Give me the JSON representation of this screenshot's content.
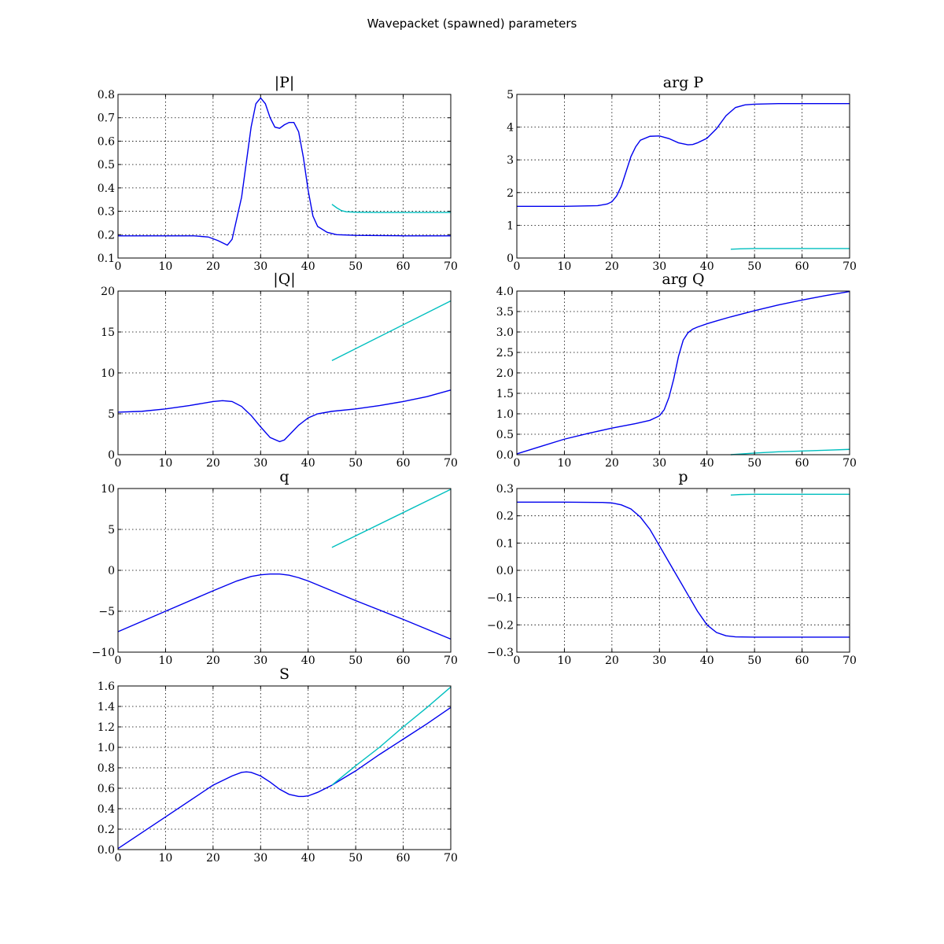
{
  "figure": {
    "title": "Wavepacket (spawned) parameters"
  },
  "colors": {
    "parent": "#0000ee",
    "spawned": "#00bfbf"
  },
  "chart_data": [
    {
      "type": "line",
      "title": "|P|",
      "xlim": [
        0,
        70
      ],
      "ylim": [
        0.1,
        0.8
      ],
      "xticks": [
        0,
        10,
        20,
        30,
        40,
        50,
        60,
        70
      ],
      "yticks": [
        0.1,
        0.2,
        0.3,
        0.4,
        0.5,
        0.6,
        0.7,
        0.8
      ],
      "ytick_labels": [
        "0.1",
        "0.2",
        "0.3",
        "0.4",
        "0.5",
        "0.6",
        "0.7",
        "0.8"
      ],
      "grid": true,
      "series": [
        {
          "color": "#0000ee",
          "x": [
            0,
            10,
            16,
            19,
            21,
            23,
            24,
            26,
            28,
            29,
            30,
            31,
            32,
            33,
            34,
            35,
            36,
            37,
            38,
            39,
            40,
            41,
            42,
            44,
            46,
            50,
            60,
            70
          ],
          "y": [
            0.195,
            0.195,
            0.195,
            0.19,
            0.175,
            0.155,
            0.18,
            0.36,
            0.66,
            0.76,
            0.785,
            0.76,
            0.7,
            0.66,
            0.655,
            0.67,
            0.68,
            0.68,
            0.64,
            0.53,
            0.39,
            0.28,
            0.235,
            0.21,
            0.2,
            0.197,
            0.195,
            0.195
          ]
        },
        {
          "color": "#00bfbf",
          "x": [
            45,
            46,
            47,
            48,
            50,
            55,
            60,
            70
          ],
          "y": [
            0.33,
            0.315,
            0.303,
            0.298,
            0.296,
            0.295,
            0.295,
            0.295
          ]
        }
      ]
    },
    {
      "type": "line",
      "title": "arg P",
      "xlim": [
        0,
        70
      ],
      "ylim": [
        0,
        5
      ],
      "xticks": [
        0,
        10,
        20,
        30,
        40,
        50,
        60,
        70
      ],
      "yticks": [
        0,
        1,
        2,
        3,
        4,
        5
      ],
      "ytick_labels": [
        "0",
        "1",
        "2",
        "3",
        "4",
        "5"
      ],
      "grid": true,
      "series": [
        {
          "color": "#0000ee",
          "x": [
            0,
            10,
            17,
            19,
            20,
            21,
            22,
            23,
            24,
            25,
            26,
            28,
            30,
            32,
            34,
            36,
            37,
            38,
            40,
            42,
            44,
            46,
            48,
            50,
            55,
            60,
            70
          ],
          "y": [
            1.58,
            1.58,
            1.6,
            1.65,
            1.72,
            1.9,
            2.2,
            2.65,
            3.1,
            3.4,
            3.6,
            3.72,
            3.73,
            3.65,
            3.52,
            3.46,
            3.47,
            3.52,
            3.66,
            3.95,
            4.35,
            4.6,
            4.68,
            4.7,
            4.72,
            4.72,
            4.72
          ]
        },
        {
          "color": "#00bfbf",
          "x": [
            45,
            47,
            50,
            55,
            60,
            70
          ],
          "y": [
            0.27,
            0.28,
            0.29,
            0.29,
            0.29,
            0.29
          ]
        }
      ]
    },
    {
      "type": "line",
      "title": "|Q|",
      "xlim": [
        0,
        70
      ],
      "ylim": [
        0,
        20
      ],
      "xticks": [
        0,
        10,
        20,
        30,
        40,
        50,
        60,
        70
      ],
      "yticks": [
        0,
        5,
        10,
        15,
        20
      ],
      "ytick_labels": [
        "0",
        "5",
        "10",
        "15",
        "20"
      ],
      "grid": true,
      "series": [
        {
          "color": "#0000ee",
          "x": [
            0,
            5,
            10,
            15,
            20,
            22,
            24,
            26,
            28,
            30,
            32,
            34,
            35,
            36,
            38,
            40,
            42,
            45,
            50,
            55,
            60,
            65,
            70
          ],
          "y": [
            5.2,
            5.3,
            5.6,
            6.0,
            6.5,
            6.6,
            6.5,
            5.9,
            4.8,
            3.4,
            2.1,
            1.6,
            1.8,
            2.4,
            3.6,
            4.5,
            5.0,
            5.3,
            5.6,
            6.0,
            6.5,
            7.1,
            7.9
          ]
        },
        {
          "color": "#00bfbf",
          "x": [
            45,
            70
          ],
          "y": [
            11.5,
            18.8
          ]
        }
      ]
    },
    {
      "type": "line",
      "title": "arg Q",
      "xlim": [
        0,
        70
      ],
      "ylim": [
        0,
        4
      ],
      "xticks": [
        0,
        10,
        20,
        30,
        40,
        50,
        60,
        70
      ],
      "yticks": [
        0,
        0.5,
        1.0,
        1.5,
        2.0,
        2.5,
        3.0,
        3.5,
        4.0
      ],
      "ytick_labels": [
        "0.0",
        "0.5",
        "1.0",
        "1.5",
        "2.0",
        "2.5",
        "3.0",
        "3.5",
        "4.0"
      ],
      "grid": true,
      "series": [
        {
          "color": "#0000ee",
          "x": [
            0,
            5,
            10,
            15,
            20,
            25,
            28,
            30,
            31,
            32,
            33,
            34,
            35,
            36,
            37,
            38,
            40,
            42,
            45,
            50,
            55,
            60,
            65,
            70
          ],
          "y": [
            0.02,
            0.2,
            0.38,
            0.52,
            0.65,
            0.76,
            0.84,
            0.95,
            1.1,
            1.4,
            1.85,
            2.4,
            2.8,
            2.98,
            3.07,
            3.12,
            3.2,
            3.27,
            3.37,
            3.52,
            3.66,
            3.78,
            3.89,
            3.99
          ]
        },
        {
          "color": "#00bfbf",
          "x": [
            45,
            50,
            55,
            60,
            65,
            70
          ],
          "y": [
            0.0,
            0.04,
            0.07,
            0.09,
            0.11,
            0.13
          ]
        }
      ]
    },
    {
      "type": "line",
      "title": "q",
      "xlim": [
        0,
        70
      ],
      "ylim": [
        -10,
        10
      ],
      "xticks": [
        0,
        10,
        20,
        30,
        40,
        50,
        60,
        70
      ],
      "yticks": [
        -10,
        -5,
        0,
        5,
        10
      ],
      "ytick_labels": [
        "−10",
        "−5",
        "0",
        "5",
        "10"
      ],
      "grid": true,
      "series": [
        {
          "color": "#0000ee",
          "x": [
            0,
            10,
            20,
            25,
            28,
            30,
            32,
            34,
            36,
            38,
            40,
            45,
            50,
            60,
            70
          ],
          "y": [
            -7.5,
            -5.0,
            -2.5,
            -1.3,
            -0.75,
            -0.55,
            -0.45,
            -0.45,
            -0.6,
            -0.9,
            -1.3,
            -2.5,
            -3.7,
            -6.0,
            -8.4
          ]
        },
        {
          "color": "#00bfbf",
          "x": [
            45,
            70
          ],
          "y": [
            2.8,
            9.9
          ]
        }
      ]
    },
    {
      "type": "line",
      "title": "p",
      "xlim": [
        0,
        70
      ],
      "ylim": [
        -0.3,
        0.3
      ],
      "xticks": [
        0,
        10,
        20,
        30,
        40,
        50,
        60,
        70
      ],
      "yticks": [
        -0.3,
        -0.2,
        -0.1,
        0.0,
        0.1,
        0.2,
        0.3
      ],
      "ytick_labels": [
        "−0.3",
        "−0.2",
        "−0.1",
        "0.0",
        "0.1",
        "0.2",
        "0.3"
      ],
      "grid": true,
      "series": [
        {
          "color": "#0000ee",
          "x": [
            0,
            10,
            18,
            20,
            22,
            24,
            26,
            28,
            30,
            32,
            34,
            36,
            38,
            40,
            42,
            44,
            46,
            50,
            60,
            70
          ],
          "y": [
            0.25,
            0.25,
            0.249,
            0.247,
            0.24,
            0.225,
            0.195,
            0.15,
            0.09,
            0.03,
            -0.03,
            -0.09,
            -0.15,
            -0.2,
            -0.228,
            -0.24,
            -0.244,
            -0.245,
            -0.245,
            -0.245
          ]
        },
        {
          "color": "#00bfbf",
          "x": [
            45,
            47,
            50,
            55,
            60,
            70
          ],
          "y": [
            0.276,
            0.278,
            0.279,
            0.279,
            0.279,
            0.279
          ]
        }
      ]
    },
    {
      "type": "line",
      "title": "S",
      "xlim": [
        0,
        70
      ],
      "ylim": [
        0,
        1.6
      ],
      "xticks": [
        0,
        10,
        20,
        30,
        40,
        50,
        60,
        70
      ],
      "yticks": [
        0.0,
        0.2,
        0.4,
        0.6,
        0.8,
        1.0,
        1.2,
        1.4,
        1.6
      ],
      "ytick_labels": [
        "0.0",
        "0.2",
        "0.4",
        "0.6",
        "0.8",
        "1.0",
        "1.2",
        "1.4",
        "1.6"
      ],
      "grid": true,
      "series": [
        {
          "color": "#0000ee",
          "x": [
            0,
            10,
            20,
            24,
            26,
            27,
            28,
            30,
            32,
            34,
            36,
            38,
            39,
            40,
            42,
            45,
            50,
            55,
            60,
            65,
            70
          ],
          "y": [
            0.01,
            0.32,
            0.63,
            0.72,
            0.755,
            0.76,
            0.755,
            0.72,
            0.66,
            0.59,
            0.54,
            0.52,
            0.52,
            0.525,
            0.56,
            0.63,
            0.77,
            0.93,
            1.08,
            1.23,
            1.39
          ]
        },
        {
          "color": "#00bfbf",
          "x": [
            45,
            50,
            55,
            60,
            65,
            70
          ],
          "y": [
            0.63,
            0.82,
            1.0,
            1.2,
            1.39,
            1.59
          ]
        }
      ]
    }
  ]
}
